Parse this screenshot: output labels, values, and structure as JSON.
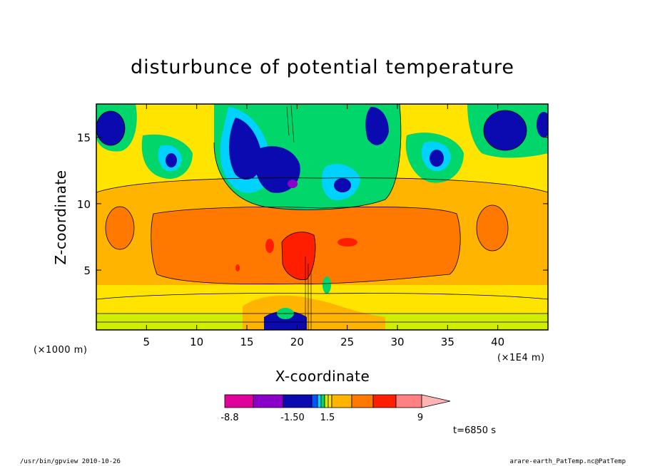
{
  "chart_data": {
    "type": "heatmap",
    "title": "disturbunce of potential temperature",
    "xlabel": "X-coordinate",
    "ylabel": "Z-coordinate",
    "x_unit": "(×1E4 m)",
    "y_unit": "(×1000 m)",
    "xlim": [
      0,
      45
    ],
    "ylim": [
      0.5,
      17.5
    ],
    "x_ticks": [
      5,
      10,
      15,
      20,
      25,
      30,
      35,
      40
    ],
    "y_ticks": [
      5,
      10,
      15
    ],
    "grid": false,
    "colorbar": {
      "tick_labels": [
        "-8.8",
        "-1.50",
        "1.5",
        "9"
      ],
      "colors": [
        "#e0009a",
        "#8a00c8",
        "#0a0ab0",
        "#0055ff",
        "#00d2ff",
        "#00d66a",
        "#d2ee00",
        "#ffe400",
        "#ffb400",
        "#ff7800",
        "#ff1e00",
        "#ff8080",
        "#ffb4b4"
      ]
    },
    "time_label": "t=6850 s"
  },
  "footer": {
    "left": "/usr/bin/gpview   2010-10-26",
    "right": "arare-earth_PatTemp.nc@PatTemp"
  }
}
